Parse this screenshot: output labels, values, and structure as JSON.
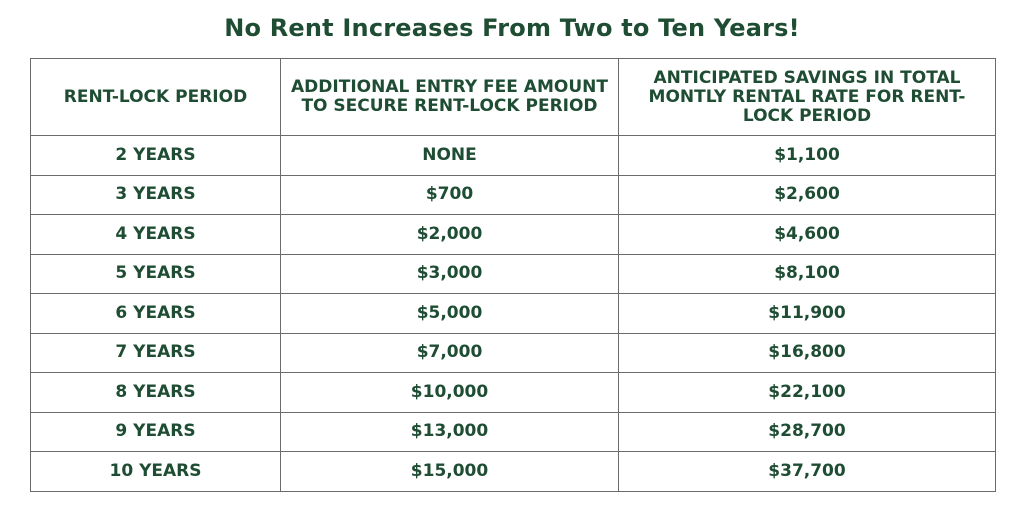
{
  "title": "No Rent Increases From Two to Ten Years!",
  "table": {
    "headers": [
      "RENT-LOCK PERIOD",
      "ADDITIONAL ENTRY FEE AMOUNT TO SECURE RENT-LOCK PERIOD",
      "ANTICIPATED SAVINGS IN TOTAL MONTLY RENTAL RATE FOR RENT-LOCK PERIOD"
    ],
    "rows": [
      [
        "2 YEARS",
        "NONE",
        "$1,100"
      ],
      [
        "3 YEARS",
        "$700",
        "$2,600"
      ],
      [
        "4 YEARS",
        "$2,000",
        "$4,600"
      ],
      [
        "5 YEARS",
        "$3,000",
        "$8,100"
      ],
      [
        "6 YEARS",
        "$5,000",
        "$11,900"
      ],
      [
        "7 YEARS",
        "$7,000",
        "$16,800"
      ],
      [
        "8 YEARS",
        "$10,000",
        "$22,100"
      ],
      [
        "9 YEARS",
        "$13,000",
        "$28,700"
      ],
      [
        "10 YEARS",
        "$15,000",
        "$37,700"
      ]
    ]
  },
  "colors": {
    "text": "#1f4d33",
    "border": "#6b6b6b",
    "background": "#ffffff"
  }
}
